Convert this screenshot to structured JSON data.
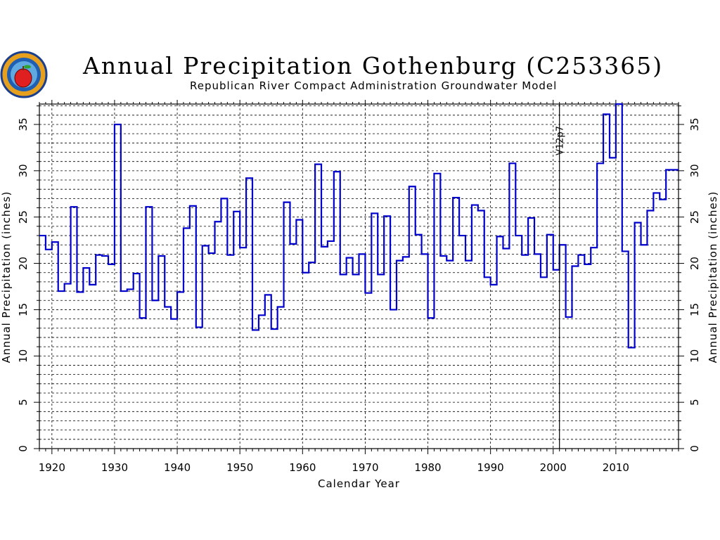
{
  "header": {
    "title": "Annual Precipitation Gothenburg (C253365)",
    "subtitle": "Republican River Compact Administration Groundwater Model"
  },
  "colors": {
    "series": "#0000cc",
    "grid": "#000000",
    "background": "#ffffff"
  },
  "chart_data": {
    "type": "line",
    "step": true,
    "title": "Annual Precipitation Gothenburg (C253365)",
    "subtitle": "Republican River Compact Administration Groundwater Model",
    "xlabel": "Calendar Year",
    "ylabel": "Annual Precipitation (inches)",
    "ylabel_right": "Annual Precipitation (inches)",
    "xlim": [
      1918,
      2020
    ],
    "ylim": [
      0,
      37.2
    ],
    "xticks": [
      1920,
      1930,
      1940,
      1950,
      1960,
      1970,
      1980,
      1990,
      2000,
      2010
    ],
    "yticks": [
      0,
      5,
      10,
      15,
      20,
      25,
      30,
      35
    ],
    "y_gridline_step": 1,
    "grid": true,
    "annotation": {
      "x": 2001,
      "label": "V12p7"
    },
    "series": [
      {
        "x": [
          1918,
          1919,
          1920,
          1921,
          1922,
          1923,
          1924,
          1925,
          1926,
          1927,
          1928,
          1929,
          1930,
          1931,
          1932,
          1933,
          1934,
          1935,
          1936,
          1937,
          1938,
          1939,
          1940,
          1941,
          1942,
          1943,
          1944,
          1945,
          1946,
          1947,
          1948,
          1949,
          1950,
          1951,
          1952,
          1953,
          1954,
          1955,
          1956,
          1957,
          1958,
          1959,
          1960,
          1961,
          1962,
          1963,
          1964,
          1965,
          1966,
          1967,
          1968,
          1969,
          1970,
          1971,
          1972,
          1973,
          1974,
          1975,
          1976,
          1977,
          1978,
          1979,
          1980,
          1981,
          1982,
          1983,
          1984,
          1985,
          1986,
          1987,
          1988,
          1989,
          1990,
          1991,
          1992,
          1993,
          1994,
          1995,
          1996,
          1997,
          1998,
          1999,
          2000,
          2001,
          2002,
          2003,
          2004,
          2005,
          2006,
          2007,
          2008,
          2009,
          2010,
          2011,
          2012,
          2013,
          2014,
          2015,
          2016,
          2017,
          2018,
          2019
        ],
        "values": [
          23.0,
          21.5,
          22.3,
          17.0,
          17.8,
          26.1,
          16.9,
          19.5,
          17.7,
          20.9,
          20.8,
          19.9,
          35.0,
          17.0,
          17.2,
          18.9,
          14.1,
          26.1,
          16.0,
          20.8,
          15.3,
          14.0,
          16.9,
          23.8,
          26.2,
          13.1,
          21.9,
          21.1,
          24.5,
          27.0,
          20.9,
          25.6,
          21.7,
          29.2,
          12.8,
          14.4,
          16.6,
          12.9,
          15.3,
          26.6,
          22.1,
          24.7,
          19.0,
          20.1,
          30.7,
          21.8,
          22.4,
          29.9,
          18.8,
          20.6,
          18.8,
          21.0,
          16.8,
          25.4,
          18.8,
          25.1,
          15.0,
          20.3,
          20.7,
          28.3,
          23.1,
          21.0,
          14.1,
          29.7,
          20.8,
          20.3,
          27.1,
          23.0,
          20.3,
          26.3,
          25.7,
          18.5,
          17.7,
          22.9,
          21.6,
          30.8,
          23.0,
          20.9,
          24.9,
          21.0,
          18.5,
          23.1,
          19.3,
          22.0,
          14.2,
          19.7,
          20.9,
          19.9,
          21.7,
          30.8,
          36.1,
          31.4,
          37.2,
          21.3,
          10.9,
          24.4,
          22.0,
          25.7,
          27.6,
          26.9,
          30.1,
          30.1
        ]
      }
    ]
  }
}
